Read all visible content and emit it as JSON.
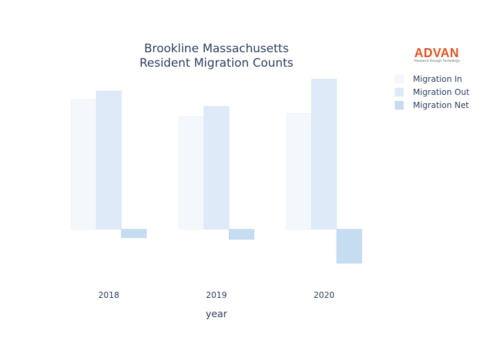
{
  "logo": {
    "brand": "ADVAN",
    "tagline": "Research through Technology",
    "brand_color": "#e0521e"
  },
  "chart_data": {
    "type": "bar",
    "title_lines": [
      "Brookline Massachusetts",
      "Resident Migration Counts"
    ],
    "xlabel": "year",
    "ylabel": "",
    "categories": [
      "2018",
      "2019",
      "2020"
    ],
    "series": [
      {
        "name": "Migration In",
        "values": [
          3800,
          3300,
          3400
        ],
        "color": "#f4f8fd",
        "stroke": "#e8eff8"
      },
      {
        "name": "Migration Out",
        "values": [
          4050,
          3600,
          4400
        ],
        "color": "#deeaf7",
        "stroke": "#d2e1f3"
      },
      {
        "name": "Migration Net",
        "values": [
          -250,
          -300,
          -1000
        ],
        "color": "#c6dcf1",
        "stroke": "#b8d2ec"
      }
    ],
    "ylim": [
      -1550,
      4700
    ],
    "grid": false,
    "legend_position": "top-right"
  }
}
